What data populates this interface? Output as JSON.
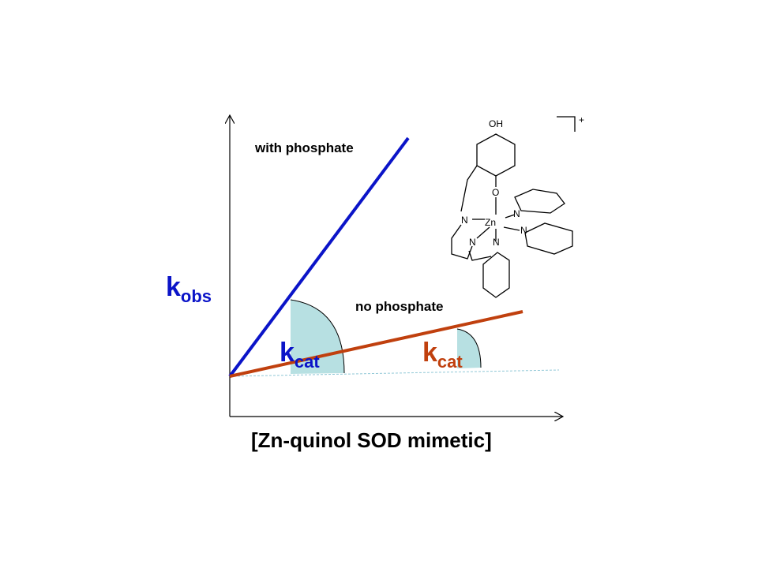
{
  "with_phosphate": "with phosphate",
  "no_phosphate": "no phosphate",
  "y_axis_label": {
    "main": "k",
    "sub": "obs"
  },
  "kcat_blue": {
    "main": "k",
    "sub": "cat"
  },
  "kcat_red": {
    "main": "k",
    "sub": "cat"
  },
  "x_axis_label": "[Zn-quinol SOD mimetic]",
  "molecule": {
    "atoms": [
      "OH",
      "O",
      "N",
      "Zn",
      "N",
      "N",
      "N",
      "N"
    ],
    "charge": "+"
  }
}
